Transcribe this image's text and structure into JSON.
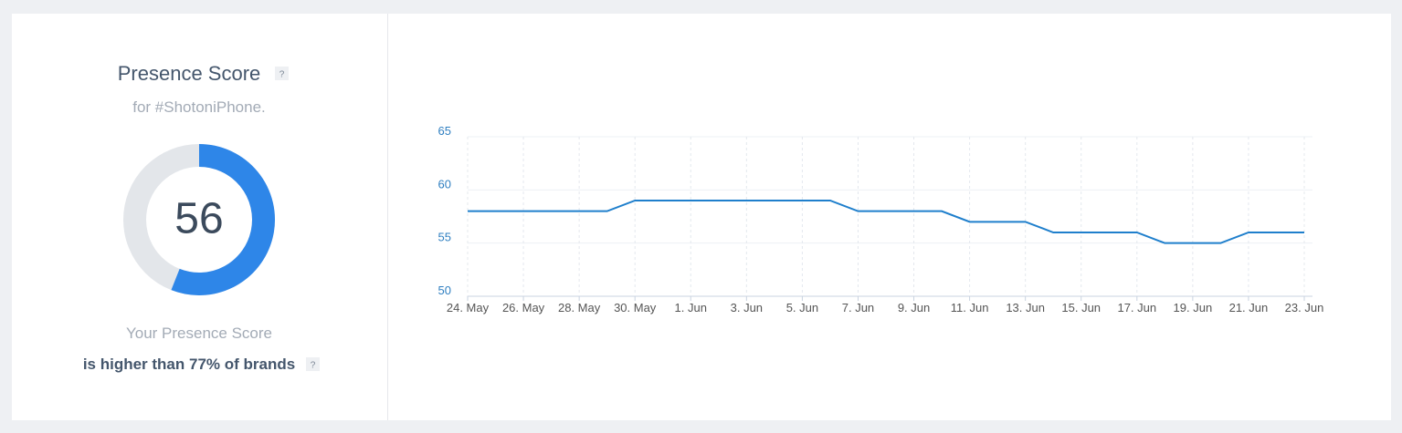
{
  "score_panel": {
    "title": "Presence Score",
    "help_icon": "?",
    "subtitle": "for #ShotoniPhone.",
    "score": 56,
    "score_range": [
      0,
      100
    ],
    "footer_line1": "Your Presence Score",
    "footer_line2": "is higher than 77% of brands"
  },
  "chart_data": {
    "type": "line",
    "color": "#1f7fcc",
    "grid": true,
    "categories": [
      "24. May",
      null,
      "26. May",
      null,
      "28. May",
      null,
      "30. May",
      null,
      "1. Jun",
      null,
      "3. Jun",
      null,
      "5. Jun",
      null,
      "7. Jun",
      null,
      "9. Jun",
      null,
      "11. Jun",
      null,
      "13. Jun",
      null,
      "15. Jun",
      null,
      "17. Jun",
      null,
      "19. Jun",
      null,
      "21. Jun",
      null,
      "23. Jun"
    ],
    "values": [
      58,
      58,
      58,
      58,
      58,
      58,
      59,
      59,
      59,
      59,
      59,
      59,
      59,
      59,
      58,
      58,
      58,
      58,
      57,
      57,
      57,
      56,
      56,
      56,
      56,
      55,
      55,
      55,
      56,
      56,
      56
    ],
    "ylim": [
      50,
      65
    ],
    "yticks": [
      50,
      55,
      60,
      65
    ]
  }
}
